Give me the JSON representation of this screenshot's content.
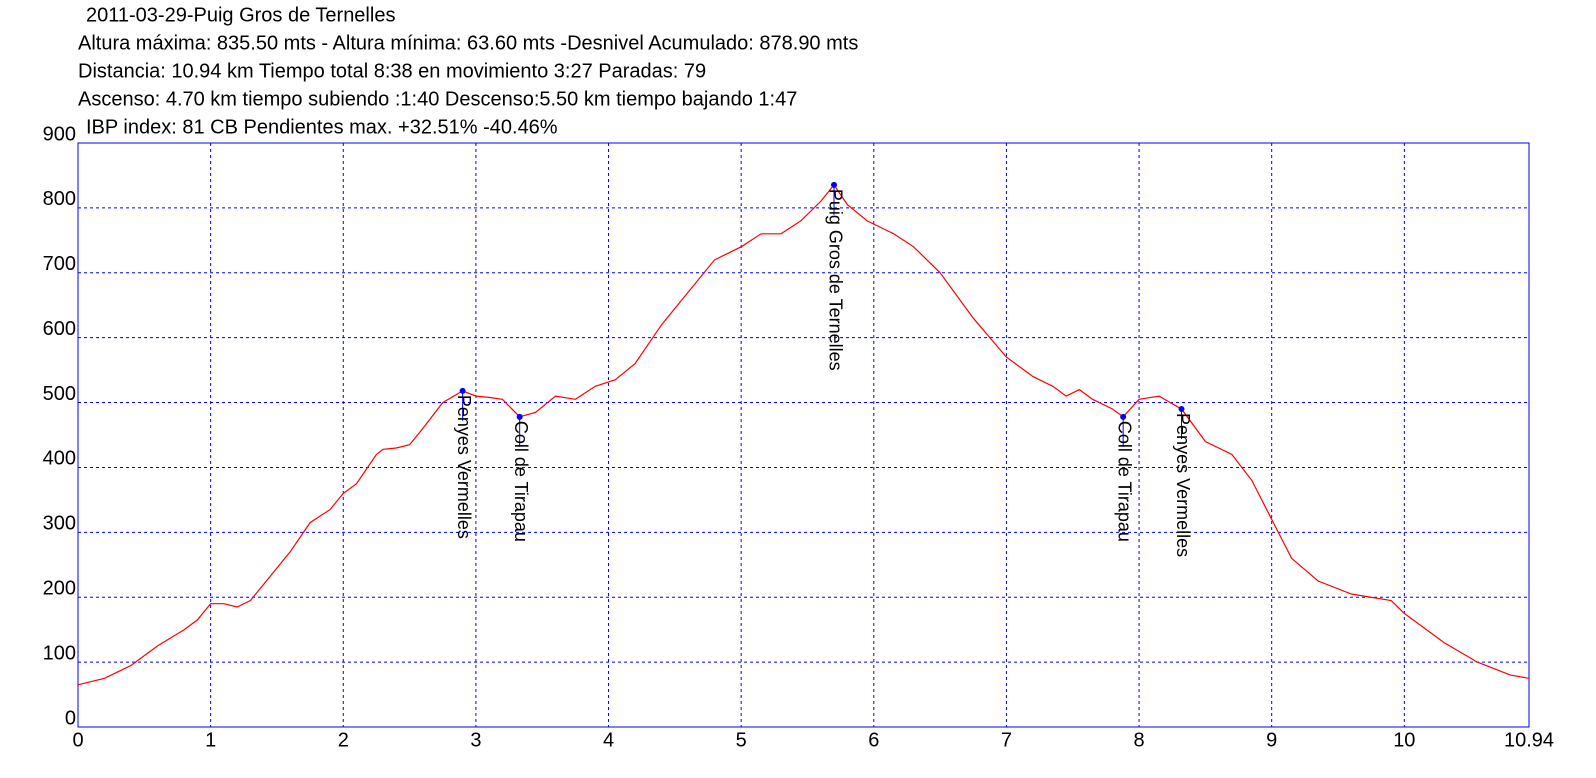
{
  "chart_data": {
    "type": "line",
    "title": "2011-03-29-Puig Gros de Ternelles",
    "subtitle": [
      "Altura máxima: 835.50 mts - Altura mínima: 63.60 mts -Desnivel Acumulado: 878.90 mts",
      "Distancia: 10.94 km  Tiempo total 8:38  en movimiento 3:27 Paradas: 79",
      "Ascenso: 4.70 km  tiempo subiendo :1:40  Descenso:5.50 km tiempo bajando 1:47",
      "IBP index: 81 CB Pendientes max. +32.51%  -40.46%"
    ],
    "x": [
      0,
      0.2,
      0.4,
      0.6,
      0.8,
      0.9,
      1.0,
      1.1,
      1.2,
      1.3,
      1.4,
      1.6,
      1.75,
      1.9,
      2.0,
      2.1,
      2.25,
      2.3,
      2.4,
      2.5,
      2.6,
      2.75,
      2.9,
      3.0,
      3.1,
      3.2,
      3.33,
      3.45,
      3.6,
      3.75,
      3.9,
      4.05,
      4.2,
      4.4,
      4.6,
      4.8,
      4.95,
      5.0,
      5.15,
      5.3,
      5.45,
      5.6,
      5.7,
      5.8,
      5.95,
      6.15,
      6.3,
      6.5,
      6.75,
      7.0,
      7.2,
      7.35,
      7.45,
      7.55,
      7.65,
      7.8,
      7.88,
      8.0,
      8.15,
      8.32,
      8.5,
      8.7,
      8.85,
      9.0,
      9.15,
      9.35,
      9.6,
      9.9,
      10.0,
      10.3,
      10.55,
      10.8,
      10.94
    ],
    "series": [
      {
        "color": "#ff0000",
        "values": [
          65,
          75,
          95,
          125,
          150,
          165,
          190,
          190,
          185,
          195,
          220,
          270,
          315,
          335,
          360,
          375,
          420,
          428,
          430,
          435,
          460,
          500,
          518,
          510,
          508,
          505,
          478,
          485,
          510,
          505,
          525,
          535,
          560,
          620,
          670,
          720,
          735,
          740,
          760,
          760,
          780,
          810,
          835.5,
          805,
          780,
          760,
          740,
          700,
          630,
          570,
          540,
          525,
          510,
          520,
          505,
          490,
          478,
          505,
          510,
          490,
          440,
          420,
          380,
          320,
          260,
          225,
          205,
          195,
          175,
          130,
          100,
          80,
          75
        ]
      }
    ],
    "annotations": [
      {
        "label": "Penyes Vermelles",
        "x": 2.9,
        "y": 518
      },
      {
        "label": "Coll de Tirapau",
        "x": 3.33,
        "y": 478
      },
      {
        "label": "Puig Gros de Ternelles",
        "x": 5.7,
        "y": 835.5
      },
      {
        "label": "Coll de Tirapau",
        "x": 7.88,
        "y": 478
      },
      {
        "label": "Penyes Vermelles",
        "x": 8.32,
        "y": 490
      }
    ],
    "xlim": [
      0,
      10.94
    ],
    "ylim": [
      0,
      900
    ],
    "xticks": [
      0,
      1,
      2,
      3,
      4,
      5,
      6,
      7,
      8,
      9,
      10,
      10.94
    ],
    "yticks": [
      0,
      100,
      200,
      300,
      400,
      500,
      600,
      700,
      800,
      900
    ],
    "grid": true,
    "grid_color": "#0000ff",
    "annotation_color": "#0000ff"
  }
}
